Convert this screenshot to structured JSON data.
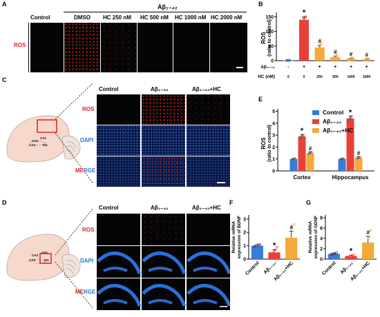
{
  "panels": {
    "A": "A",
    "B": "B",
    "C": "C",
    "D": "D",
    "E": "E",
    "F": "F",
    "G": "G"
  },
  "panelA": {
    "group_label": "Aβ₁₋₄₂",
    "columns": [
      "Control",
      "DMSO",
      "HC 250 nM",
      "HC 500 nM",
      "HC 1000 nM",
      "HC 2000 nM"
    ],
    "row_label": "ROS"
  },
  "panelC": {
    "columns": [
      "Control",
      "Aβ₁₋₄₂",
      "Aβ₁₋₄₂+HC"
    ],
    "rows": [
      "ROS",
      "DAPI",
      "MERGE"
    ],
    "merge_me": "ME",
    "merge_rge": "RGE",
    "region_labels": [
      "CA2",
      "CA1",
      "CA3",
      "DG"
    ]
  },
  "panelD": {
    "columns": [
      "Control",
      "Aβ₁₋₄₂",
      "Aβ₁₋₄₂+HC"
    ],
    "rows": [
      "ROS",
      "DAPI",
      "MERGE"
    ],
    "merge_me": "ME",
    "merge_rge": "RGE",
    "region_labels": [
      "CA2",
      "CA1",
      "CA3",
      "DG"
    ]
  },
  "colors": {
    "control": "#3a7bd5",
    "abeta": "#e8413a",
    "hc": "#f4a93a",
    "red_text": "#e0201a",
    "blue_text": "#2f6fd6"
  },
  "chart_data": [
    {
      "panel": "B",
      "type": "bar",
      "ylabel": "ROS",
      "ylabel2": "(ratio to control)",
      "yticks": [
        0,
        50,
        100,
        150
      ],
      "ylim": [
        0,
        165
      ],
      "row_abeta_label": "Aβ₁₋₄₂",
      "row_hc_label": "HC (nM)",
      "abeta_signs": [
        "-",
        "+",
        "+",
        "+",
        "+",
        "+"
      ],
      "hc_values": [
        "0",
        "0",
        "250",
        "500",
        "1000",
        "2000"
      ],
      "values": [
        1,
        140,
        45,
        12,
        6,
        4
      ],
      "errors": [
        0.5,
        10,
        8,
        4,
        2,
        1.5
      ],
      "points": [
        [
          0.5,
          1,
          1.5
        ],
        [
          132,
          146,
          150
        ],
        [
          38,
          50,
          60
        ],
        [
          8,
          12,
          22
        ],
        [
          3,
          6,
          10
        ],
        [
          2,
          4,
          7
        ]
      ],
      "bar_colors": [
        "#3a7bd5",
        "#e8413a",
        "#f4a93a",
        "#f4a93a",
        "#f4a93a",
        "#f4a93a"
      ],
      "marks": [
        "",
        "*",
        "#",
        "#",
        "#",
        "#"
      ]
    },
    {
      "panel": "E",
      "type": "bar",
      "ylabel": "ROS",
      "ylabel2": "(ratio to control)",
      "categories": [
        "Cortex",
        "Hippocampus"
      ],
      "yticks": [
        0,
        1,
        2,
        3,
        4,
        5
      ],
      "ylim": [
        0,
        5.2
      ],
      "series": [
        {
          "name": "Control",
          "values": [
            1.0,
            1.0
          ],
          "errors": [
            0.05,
            0.05
          ]
        },
        {
          "name": "Aβ₁₋₄₂",
          "values": [
            2.9,
            4.4
          ],
          "errors": [
            0.15,
            0.2
          ]
        },
        {
          "name": "Aβ₁₋₄₂+HC",
          "values": [
            1.5,
            1.1
          ],
          "errors": [
            0.1,
            0.1
          ]
        }
      ],
      "marks": [
        [
          "",
          "*",
          "#"
        ],
        [
          "",
          "*",
          "#"
        ]
      ],
      "legend": "top-right"
    },
    {
      "panel": "F",
      "type": "bar",
      "ylabel": "Relative mRNA",
      "ylabel2": "expression of BDNF",
      "categories": [
        "Control",
        "Aβ₁₋₄₂",
        "Aβ₁₋₄₂+HC"
      ],
      "yticks": [
        0,
        1,
        2,
        3
      ],
      "ylim": [
        0,
        3.3
      ],
      "values": [
        1.0,
        0.5,
        1.6
      ],
      "errors": [
        0.08,
        0.2,
        0.5
      ],
      "points": [
        [
          0.95,
          1.0,
          1.05,
          1.1
        ],
        [
          0.2,
          0.5,
          0.7,
          0.9
        ],
        [
          0.9,
          1.5,
          2.3,
          2.6
        ]
      ],
      "marks": [
        "",
        "*",
        "#"
      ]
    },
    {
      "panel": "G",
      "type": "bar",
      "ylabel": "Relative mRNA",
      "ylabel2": "expression of GDNF",
      "categories": [
        "Control",
        "Aβ₁₋₄₂",
        "Aβ₁₋₄₂+HC"
      ],
      "yticks": [
        0,
        2,
        4,
        6,
        8
      ],
      "ylim": [
        0,
        8.5
      ],
      "values": [
        1.0,
        0.6,
        3.2
      ],
      "errors": [
        0.1,
        0.15,
        1.2
      ],
      "points": [
        [
          0.9,
          1.0,
          1.1,
          1.2
        ],
        [
          0.4,
          0.6,
          0.7,
          0.8
        ],
        [
          1.5,
          2.5,
          4.0,
          5.5
        ]
      ],
      "marks": [
        "",
        "*",
        "#"
      ]
    }
  ]
}
